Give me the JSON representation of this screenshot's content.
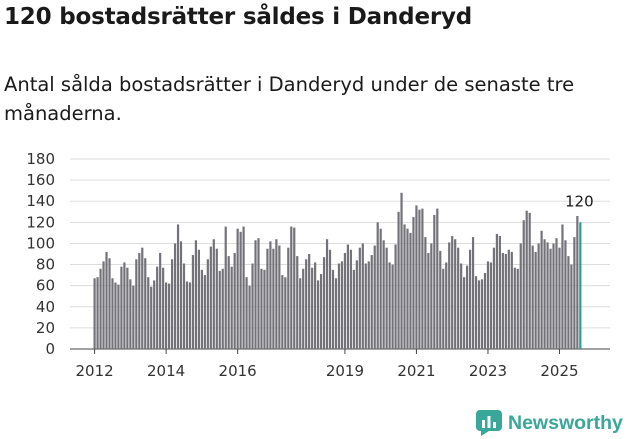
{
  "colors": {
    "bar": "#737279",
    "highlight": "#2a9d8f",
    "brand": "#39a79a",
    "grid": "#dddddd"
  },
  "brand": {
    "name": "Newsworthy",
    "icon": "newsworthy-logo-icon"
  },
  "chart_data": {
    "type": "bar",
    "title": "120 bostadsrätter såldes i Danderyd",
    "subtitle": "Antal sålda bostadsrätter i Danderyd under de senaste tre månaderna.",
    "xlabel": "",
    "ylabel": "",
    "ylim": [
      0,
      180
    ],
    "yticks": [
      0,
      20,
      40,
      60,
      80,
      100,
      120,
      140,
      160,
      180
    ],
    "xticks": [
      "2012",
      "2014",
      "2016",
      "2019",
      "2021",
      "2023",
      "2025"
    ],
    "x_start": "2012-01",
    "highlight_label": "120",
    "values": [
      67,
      68,
      76,
      83,
      92,
      86,
      67,
      63,
      61,
      78,
      82,
      77,
      66,
      60,
      85,
      91,
      96,
      86,
      68,
      59,
      65,
      78,
      91,
      77,
      63,
      62,
      85,
      100,
      118,
      102,
      81,
      64,
      63,
      89,
      103,
      94,
      75,
      70,
      85,
      97,
      104,
      95,
      74,
      76,
      116,
      88,
      78,
      91,
      114,
      111,
      116,
      68,
      60,
      81,
      103,
      105,
      76,
      75,
      95,
      102,
      95,
      104,
      98,
      70,
      68,
      96,
      116,
      115,
      88,
      67,
      76,
      85,
      90,
      77,
      82,
      65,
      71,
      87,
      104,
      94,
      75,
      67,
      81,
      83,
      91,
      99,
      94,
      75,
      84,
      96,
      100,
      81,
      83,
      89,
      98,
      120,
      114,
      103,
      96,
      82,
      80,
      99,
      130,
      148,
      118,
      114,
      110,
      125,
      136,
      132,
      133,
      106,
      91,
      100,
      127,
      133,
      93,
      76,
      82,
      101,
      107,
      104,
      96,
      81,
      68,
      79,
      94,
      106,
      69,
      65,
      66,
      72,
      83,
      82,
      96,
      109,
      107,
      91,
      90,
      94,
      92,
      77,
      76,
      100,
      122,
      131,
      129,
      98,
      92,
      100,
      112,
      104,
      101,
      95,
      100,
      105,
      96,
      118,
      103,
      88,
      80,
      106,
      126,
      120
    ]
  }
}
